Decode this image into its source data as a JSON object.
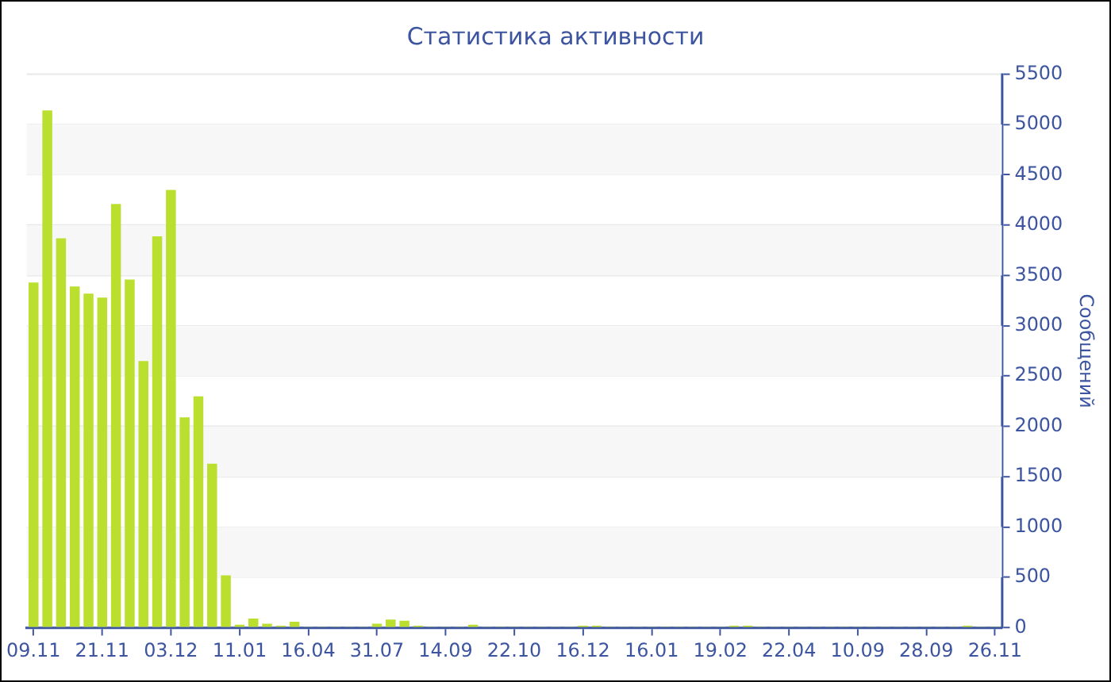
{
  "chart_data": {
    "type": "bar",
    "title": "Статистика активности",
    "y2label": "Сообщений",
    "categories": [
      "09.11",
      null,
      null,
      null,
      null,
      "21.11",
      null,
      null,
      null,
      null,
      "03.12",
      null,
      null,
      null,
      null,
      "11.01",
      null,
      null,
      null,
      null,
      "16.04",
      null,
      null,
      null,
      null,
      "31.07",
      null,
      null,
      null,
      null,
      "14.09",
      null,
      null,
      null,
      null,
      "22.10",
      null,
      null,
      null,
      null,
      "16.12",
      null,
      null,
      null,
      null,
      "16.01",
      null,
      null,
      null,
      null,
      "19.02",
      null,
      null,
      null,
      null,
      "22.04",
      null,
      null,
      null,
      null,
      "10.09",
      null,
      null,
      null,
      null,
      "28.09",
      null,
      null,
      null,
      null,
      "26.11"
    ],
    "series": [
      {
        "color": "#bbdf2f",
        "axis": "y2",
        "values": [
          3430,
          5140,
          3870,
          3390,
          3320,
          3280,
          4210,
          3460,
          2650,
          3890,
          4350,
          2090,
          2300,
          1630,
          520,
          30,
          90,
          40,
          20,
          60,
          10,
          10,
          10,
          10,
          10,
          40,
          80,
          70,
          20,
          10,
          10,
          10,
          30,
          10,
          10,
          10,
          10,
          10,
          10,
          10,
          20,
          20,
          10,
          10,
          10,
          10,
          10,
          10,
          10,
          10,
          10,
          20,
          20,
          10,
          10,
          10,
          10,
          10,
          10,
          10,
          10,
          10,
          10,
          10,
          10,
          10,
          10,
          10,
          20,
          10,
          10
        ]
      }
    ],
    "y2lim": [
      0,
      5500
    ],
    "y2ticks": [
      0,
      500,
      1000,
      1500,
      2000,
      2500,
      3000,
      3500,
      4000,
      4500,
      5000,
      5500
    ],
    "grid": "y",
    "legend": false
  }
}
